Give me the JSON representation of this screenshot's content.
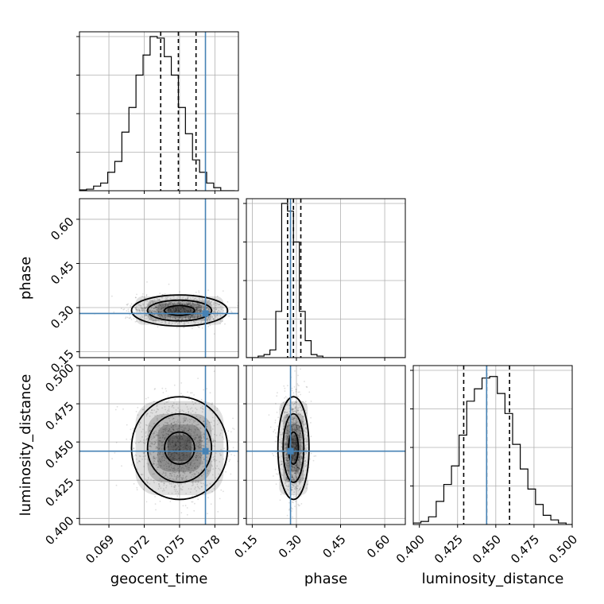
{
  "chart_data": {
    "type": "corner",
    "parameters": [
      {
        "name": "geocent_time",
        "range": [
          0.0665,
          0.08
        ],
        "ticks": [
          "0.069",
          "0.072",
          "0.075",
          "0.078"
        ],
        "truth": 0.0772,
        "quantiles": [
          0.0734,
          0.0749,
          0.0764
        ]
      },
      {
        "name": "phase",
        "range": [
          0.13,
          0.67
        ],
        "ticks": [
          "0.15",
          "0.30",
          "0.45",
          "0.60"
        ],
        "truth": 0.28,
        "quantiles": [
          0.27,
          0.29,
          0.315
        ]
      },
      {
        "name": "luminosity_distance",
        "range": [
          0.396,
          0.5
        ],
        "ticks": [
          "0.400",
          "0.425",
          "0.450",
          "0.475",
          "0.500"
        ],
        "truth": 0.444,
        "quantiles": [
          0.429,
          0.444,
          0.459
        ]
      }
    ],
    "histograms": {
      "geocent_time": {
        "edges_start": 0.0665,
        "bin_width": 0.0006,
        "counts": [
          0.005,
          0.01,
          0.03,
          0.05,
          0.12,
          0.19,
          0.38,
          0.54,
          0.75,
          0.88,
          1.0,
          0.99,
          0.87,
          0.75,
          0.54,
          0.37,
          0.2,
          0.12,
          0.05,
          0.02,
          0.0,
          0.0
        ]
      },
      "phase": {
        "edges_start": 0.13,
        "bin_width": 0.02,
        "counts": [
          0.0,
          0.0,
          0.01,
          0.02,
          0.05,
          0.3,
          1.0,
          0.95,
          0.75,
          0.3,
          0.11,
          0.02,
          0.01,
          0.0,
          0.0,
          0.0,
          0.0,
          0.0,
          0.0,
          0.0,
          0.0,
          0.0,
          0.0,
          0.0,
          0.0,
          0.0,
          0.0
        ]
      },
      "luminosity_distance": {
        "edges_start": 0.396,
        "bin_width": 0.005,
        "counts": [
          0.01,
          0.02,
          0.05,
          0.15,
          0.26,
          0.38,
          0.58,
          0.8,
          0.88,
          0.95,
          0.96,
          0.85,
          0.72,
          0.52,
          0.36,
          0.23,
          0.13,
          0.06,
          0.03,
          0.01,
          0.0
        ]
      }
    },
    "scatter_panels": [
      {
        "x": "geocent_time",
        "y": "phase",
        "mean": [
          0.075,
          0.29
        ],
        "sd": [
          0.0017,
          0.022
        ]
      },
      {
        "x": "geocent_time",
        "y": "luminosity_distance",
        "mean": [
          0.075,
          0.446
        ],
        "sd": [
          0.0017,
          0.014
        ]
      },
      {
        "x": "phase",
        "y": "luminosity_distance",
        "mean": [
          0.29,
          0.446
        ],
        "sd": [
          0.022,
          0.014
        ]
      }
    ],
    "colors": {
      "truth": "#4682b4",
      "hist": "#000000",
      "grid": "#b0b0b0",
      "points": "#000000"
    },
    "grid": true
  }
}
